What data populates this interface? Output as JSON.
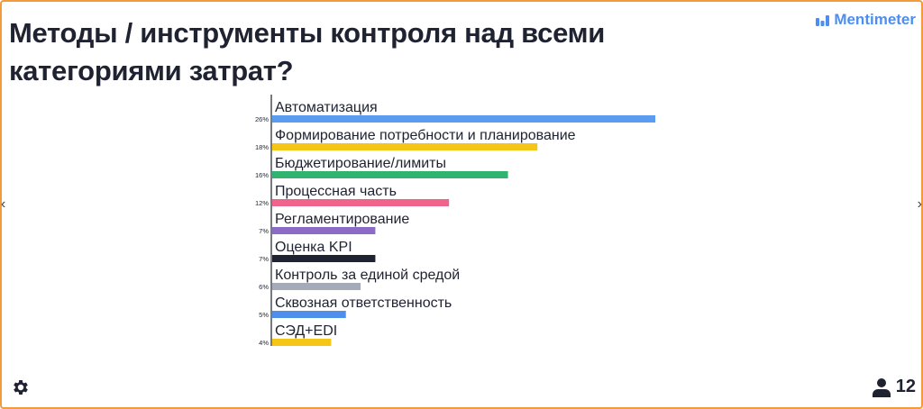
{
  "title": "Методы / инструменты контроля над всеми категориями затрат?",
  "brand": {
    "name": "Mentimeter",
    "icon": "mentimeter-logo-icon",
    "color": "#4d8ef0"
  },
  "footer": {
    "settings_icon": "gear-icon",
    "participants_icon": "person-icon",
    "participants_count": "12"
  },
  "nav": {
    "prev_icon": "chevron-left-icon",
    "next_icon": "chevron-right-icon"
  },
  "chart_data": {
    "type": "bar",
    "orientation": "horizontal",
    "categories": [
      "Автоматизация",
      "Формирование потребности и планирование",
      "Бюджетирование/лимиты",
      "Процессная часть",
      "Регламентирование",
      "Оценка KPI",
      "Контроль за единой средой",
      "Сквозная ответственность",
      "СЭД+EDI"
    ],
    "values": [
      26,
      18,
      16,
      12,
      7,
      7,
      6,
      5,
      4
    ],
    "value_labels": [
      "26%",
      "18%",
      "16%",
      "12%",
      "7%",
      "7%",
      "6%",
      "5%",
      "4%"
    ],
    "colors": [
      "#5b9cf0",
      "#f5c518",
      "#2fb36e",
      "#f0648c",
      "#8c6bc7",
      "#1f2230",
      "#a4aab7",
      "#4f8fec",
      "#f5c518"
    ],
    "xlim": [
      0,
      26
    ],
    "grid": false,
    "legend": "none"
  }
}
